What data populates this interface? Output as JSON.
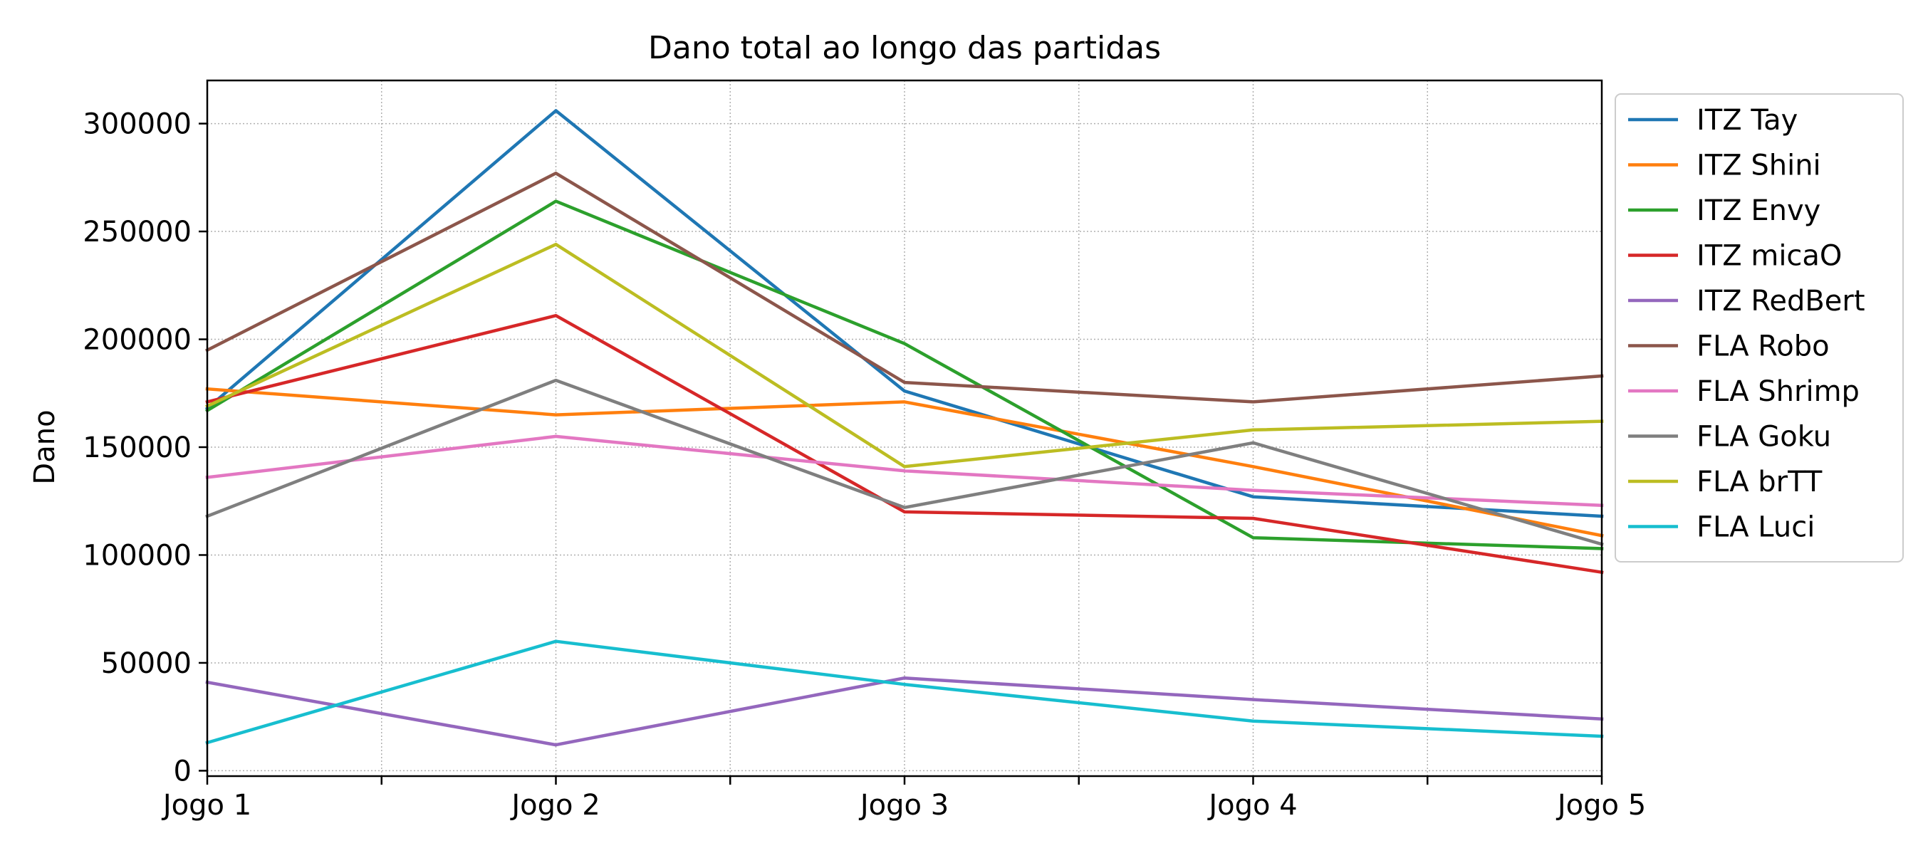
{
  "chart_data": {
    "type": "line",
    "title": "Dano total ao longo das partidas",
    "xlabel": "",
    "ylabel": "Dano",
    "categories": [
      "Jogo 1",
      "Jogo 2",
      "Jogo 3",
      "Jogo 4",
      "Jogo 5"
    ],
    "xlim": [
      0,
      4
    ],
    "ylim": [
      -2500,
      320000
    ],
    "y_ticks": [
      0,
      50000,
      100000,
      150000,
      200000,
      250000,
      300000
    ],
    "y_tick_labels": [
      "0",
      "50000",
      "100000",
      "150000",
      "200000",
      "250000",
      "300000"
    ],
    "x_minor_ticks": [
      0.5,
      1.5,
      2.5,
      3.5
    ],
    "grid": true,
    "legend_position": "outside-right-top",
    "series": [
      {
        "name": "ITZ Tay",
        "color": "#1f77b4",
        "values": [
          168000,
          306000,
          176000,
          127000,
          118000
        ]
      },
      {
        "name": "ITZ Shini",
        "color": "#ff7f0e",
        "values": [
          177000,
          165000,
          171000,
          141000,
          109000
        ]
      },
      {
        "name": "ITZ Envy",
        "color": "#2ca02c",
        "values": [
          167000,
          264000,
          198000,
          108000,
          103000
        ]
      },
      {
        "name": "ITZ micaO",
        "color": "#d62728",
        "values": [
          171000,
          211000,
          120000,
          117000,
          92000
        ]
      },
      {
        "name": "ITZ RedBert",
        "color": "#9467bd",
        "values": [
          41000,
          12000,
          43000,
          33000,
          24000
        ]
      },
      {
        "name": "FLA Robo",
        "color": "#8c564b",
        "values": [
          195000,
          277000,
          180000,
          171000,
          183000
        ]
      },
      {
        "name": "FLA Shrimp",
        "color": "#e377c2",
        "values": [
          136000,
          155000,
          139000,
          130000,
          123000
        ]
      },
      {
        "name": "FLA Goku",
        "color": "#7f7f7f",
        "values": [
          118000,
          181000,
          122000,
          152000,
          105000
        ]
      },
      {
        "name": "FLA brTT",
        "color": "#bcbd22",
        "values": [
          169000,
          244000,
          141000,
          158000,
          162000
        ]
      },
      {
        "name": "FLA Luci",
        "color": "#17becf",
        "values": [
          13000,
          60000,
          40000,
          23000,
          16000
        ]
      }
    ]
  }
}
